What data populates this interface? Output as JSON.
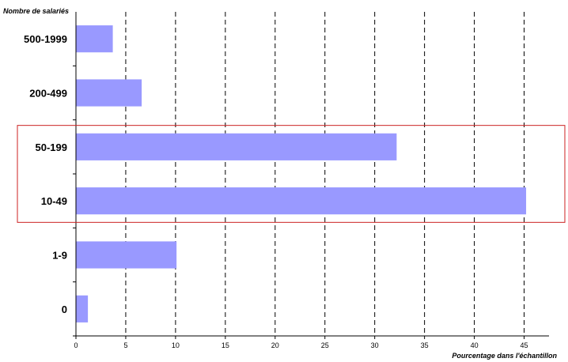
{
  "chart_data": {
    "type": "bar",
    "orientation": "horizontal",
    "title": "",
    "ylabel": "Nombre de salariés",
    "xlabel": "Pourcentage dans l'échantillon",
    "categories": [
      "500-1999",
      "200-499",
      "50-199",
      "10-49",
      "1-9",
      "0"
    ],
    "values": [
      3.7,
      6.6,
      32.2,
      45.2,
      10.1,
      1.2
    ],
    "xlim": [
      0,
      47.5
    ],
    "xticks": [
      0,
      5,
      10,
      15,
      20,
      25,
      30,
      35,
      40,
      45
    ],
    "grid": "vertical dashed",
    "bar_color": "#9999ff",
    "highlight": {
      "categories": [
        "50-199",
        "10-49"
      ],
      "color": "#cc2222"
    }
  }
}
